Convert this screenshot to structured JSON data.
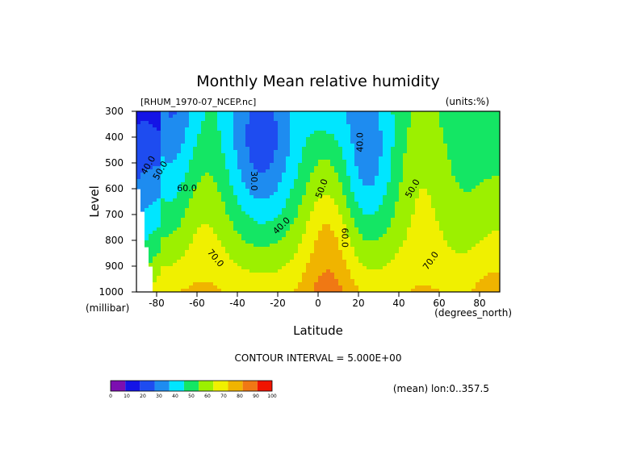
{
  "chart_data": {
    "type": "heatmap",
    "title": "Monthly Mean relative humidity",
    "dataset": "[RHUM_1970-07_NCEP.nc]",
    "units": "(units:%)",
    "xlabel": "Latitude",
    "xunits": "(degrees_north)",
    "ylabel": "Level",
    "yunits": "(millibar)",
    "xlim": [
      -90,
      90
    ],
    "ylim": [
      1000,
      300
    ],
    "y_reversed": true,
    "x_ticks": [
      "-80",
      "-60",
      "-40",
      "-20",
      "0",
      "20",
      "40",
      "60",
      "80"
    ],
    "y_ticks": [
      "300",
      "400",
      "500",
      "600",
      "700",
      "800",
      "900",
      "1000"
    ],
    "x_tick_values": [
      -80,
      -60,
      -40,
      -20,
      0,
      20,
      40,
      60,
      80
    ],
    "y_tick_values": [
      300,
      400,
      500,
      600,
      700,
      800,
      900,
      1000
    ],
    "contour_interval_text": "CONTOUR INTERVAL = 5.000E+00",
    "footer_note": "(mean) lon:0..357.5",
    "contour_labels": [
      {
        "text": "40.0",
        "lat": -84,
        "level": 510,
        "rotate": -60
      },
      {
        "text": "50.0",
        "lat": -78,
        "level": 530,
        "rotate": -60
      },
      {
        "text": "60.0",
        "lat": -65,
        "level": 600,
        "rotate": 0
      },
      {
        "text": "70.0",
        "lat": -51,
        "level": 870,
        "rotate": 50
      },
      {
        "text": "30.0",
        "lat": -32,
        "level": 570,
        "rotate": 90
      },
      {
        "text": "40.0",
        "lat": -18,
        "level": 745,
        "rotate": -45
      },
      {
        "text": "50.0",
        "lat": 2,
        "level": 600,
        "rotate": -70
      },
      {
        "text": "60.0",
        "lat": 13,
        "level": 790,
        "rotate": 90
      },
      {
        "text": "40.0",
        "lat": 21,
        "level": 420,
        "rotate": -90
      },
      {
        "text": "50.0",
        "lat": 47,
        "level": 600,
        "rotate": -60
      },
      {
        "text": "70.0",
        "lat": 56,
        "level": 880,
        "rotate": -55
      }
    ],
    "colorbar": {
      "ticks": [
        "0",
        "10",
        "20",
        "30",
        "40",
        "50",
        "60",
        "70",
        "80",
        "90",
        "100"
      ],
      "colors": [
        "#7c0fb0",
        "#1414e6",
        "#1e4cf0",
        "#1e8cf0",
        "#00e6ff",
        "#14e664",
        "#9cf000",
        "#f0f000",
        "#f0b400",
        "#f07814",
        "#f01400"
      ]
    }
  }
}
